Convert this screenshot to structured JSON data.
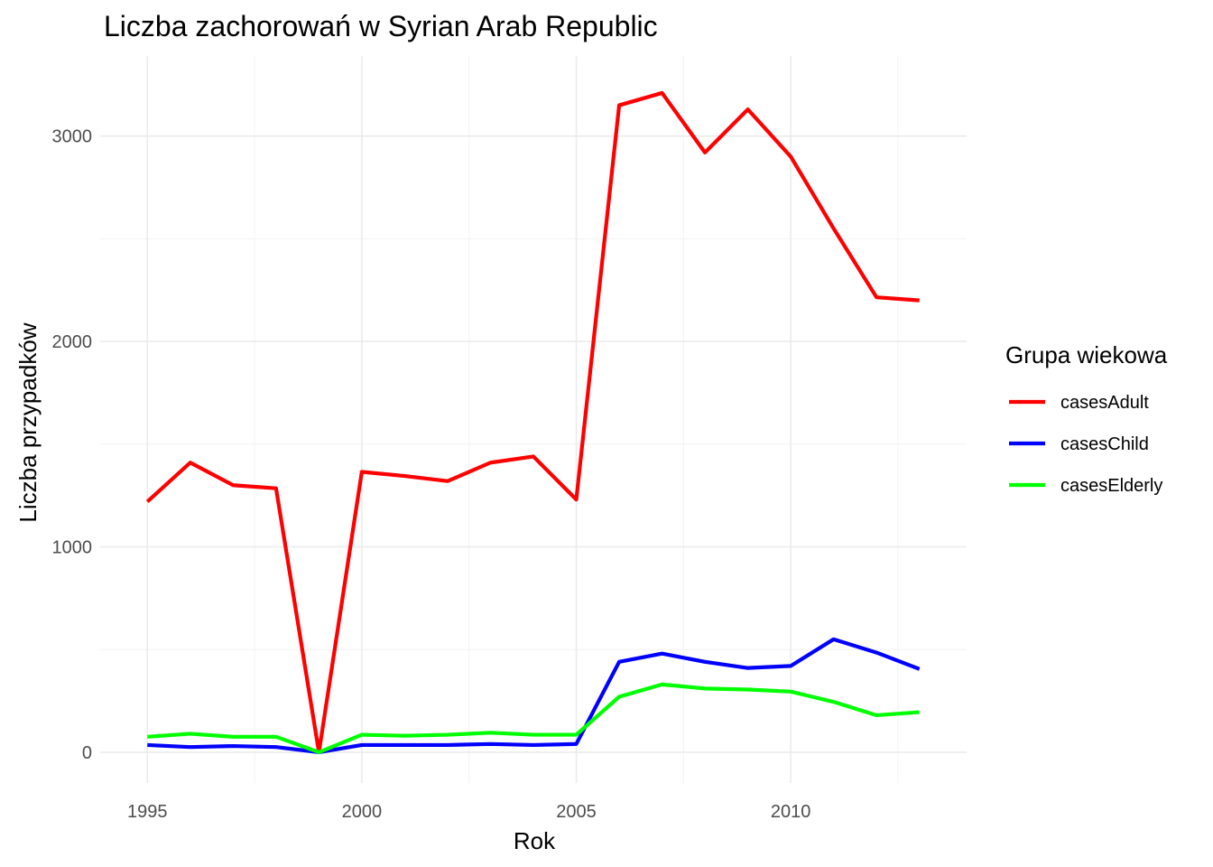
{
  "chart_data": {
    "type": "line",
    "title": "Liczba zachorowań w Syrian Arab Republic",
    "xlabel": "Rok",
    "ylabel": "Liczba przypadków",
    "x": [
      1995,
      1996,
      1997,
      1998,
      1999,
      2000,
      2001,
      2002,
      2003,
      2004,
      2005,
      2006,
      2007,
      2008,
      2009,
      2010,
      2011,
      2012,
      2013
    ],
    "xlim": [
      1993.9,
      2014.1
    ],
    "ylim": [
      -150,
      3390
    ],
    "x_ticks": [
      1995,
      2000,
      2005,
      2010
    ],
    "x_tick_labels": [
      "1995",
      "2000",
      "2005",
      "2010"
    ],
    "y_ticks": [
      0,
      1000,
      2000,
      3000
    ],
    "y_tick_labels": [
      "0",
      "1000",
      "2000",
      "3000"
    ],
    "grid": true,
    "legend": {
      "title": "Grupa wiekowa",
      "position": "right"
    },
    "series": [
      {
        "name": "casesAdult",
        "color": "#ff0000",
        "values": [
          1220,
          1410,
          1300,
          1285,
          0,
          1365,
          1345,
          1320,
          1410,
          1440,
          1230,
          3150,
          3210,
          2920,
          3130,
          2900,
          2550,
          2215,
          2200
        ]
      },
      {
        "name": "casesChild",
        "color": "#0000ff",
        "values": [
          35,
          25,
          30,
          25,
          0,
          35,
          35,
          35,
          40,
          35,
          40,
          440,
          480,
          440,
          410,
          420,
          550,
          485,
          405
        ]
      },
      {
        "name": "casesElderly",
        "color": "#00ff00",
        "values": [
          75,
          90,
          75,
          75,
          0,
          85,
          80,
          85,
          95,
          85,
          85,
          270,
          330,
          310,
          305,
          295,
          245,
          180,
          195
        ]
      }
    ]
  }
}
